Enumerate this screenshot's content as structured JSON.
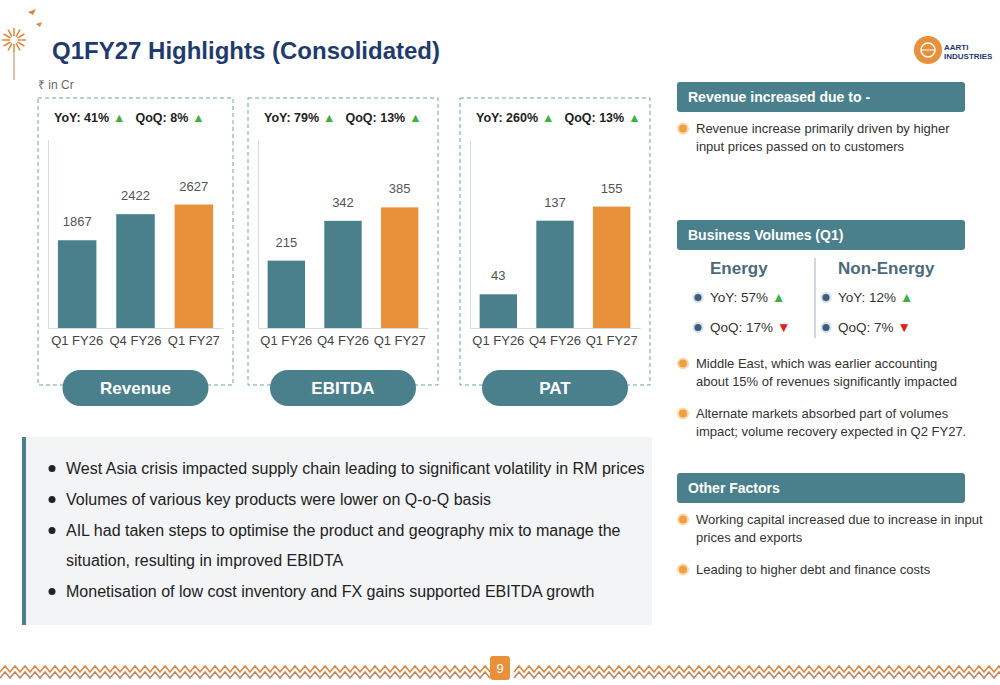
{
  "chart_data": [
    {
      "type": "bar",
      "title": "Revenue",
      "categories": [
        "Q1 FY26",
        "Q4 FY26",
        "Q1 FY27"
      ],
      "values": [
        1867,
        2422,
        2627
      ],
      "colors": [
        "#4a7f8c",
        "#4a7f8c",
        "#e8913a"
      ],
      "ylim": [
        0,
        4000
      ],
      "data_labels": true,
      "tick_labels": "x",
      "annotations": [
        {
          "label": "YoY: 41%",
          "trend": "▲",
          "color": "#3cb043"
        },
        {
          "label": "QoQ: 8%",
          "trend": "▲",
          "color": "#3cb043"
        }
      ]
    },
    {
      "type": "bar",
      "title": "EBITDA",
      "categories": [
        "Q1 FY26",
        "Q4 FY26",
        "Q1 FY27"
      ],
      "values": [
        215,
        342,
        385
      ],
      "colors": [
        "#4a7f8c",
        "#4a7f8c",
        "#e8913a"
      ],
      "ylim": [
        0,
        600
      ],
      "data_labels": true,
      "tick_labels": "x",
      "annotations": [
        {
          "label": "YoY: 79%",
          "trend": "▲",
          "color": "#3cb043"
        },
        {
          "label": "QoQ: 13%",
          "trend": "▲",
          "color": "#3cb043"
        }
      ]
    },
    {
      "type": "bar",
      "title": "PAT",
      "categories": [
        "Q1 FY26",
        "Q4 FY26",
        "Q1 FY27"
      ],
      "values": [
        43,
        137,
        155
      ],
      "colors": [
        "#4a7f8c",
        "#4a7f8c",
        "#e8913a"
      ],
      "ylim": [
        0,
        240
      ],
      "data_labels": true,
      "tick_labels": "x",
      "annotations": [
        {
          "label": "YoY: 260%",
          "trend": "▲",
          "color": "#3cb043"
        },
        {
          "label": "QoQ: 13%",
          "trend": "▲",
          "color": "#3cb043"
        }
      ]
    }
  ],
  "slide": {
    "title": "Q1FY27 Highlights (Consolidated)",
    "unit": "₹ in Cr",
    "logo": [
      "AARTI",
      "INDUSTRIES"
    ],
    "highlights": [
      [
        "West Asia crisis impacted supply chain leading to significant volatility in RM prices"
      ],
      [
        "Volumes of various key products were lower on Q-o-Q basis"
      ],
      [
        "AIL had taken steps to optimise the product and geography mix to manage the",
        "situation, resulting in improved EBIDTA"
      ],
      [
        "Monetisation of low cost inventory and FX gains supported EBITDA growth"
      ]
    ],
    "panels": [
      {
        "heading": "Revenue increased due to -",
        "bullets": [
          [
            "Revenue increase primarily driven by higher",
            "input prices passed on to customers"
          ]
        ]
      },
      {
        "heading": "Business Volumes (Q1)",
        "groups": [
          {
            "name": "Energy",
            "items": [
              {
                "label": "YoY:  57%",
                "trend": "▲",
                "color": "#3cb043"
              },
              {
                "label": "QoQ:  17%",
                "trend": "▼",
                "color": "#e02020"
              }
            ]
          },
          {
            "name": "Non-Energy",
            "items": [
              {
                "label": "YoY:  12%",
                "trend": "▲",
                "color": "#3cb043"
              },
              {
                "label": "QoQ:  7%",
                "trend": "▼",
                "color": "#e02020"
              }
            ]
          }
        ],
        "bullets": [
          [
            "Middle East, which was earlier accounting",
            "about 15% of revenues significantly impacted"
          ],
          [
            "Alternate markets absorbed part of volumes",
            "impact; volume recovery expected in Q2 FY27."
          ]
        ]
      },
      {
        "heading": "Other Factors",
        "bullets": [
          [
            "Working capital increased due to increase in input",
            "prices and exports"
          ],
          [
            "Leading to higher debt and finance costs"
          ]
        ]
      }
    ],
    "page": 9
  }
}
